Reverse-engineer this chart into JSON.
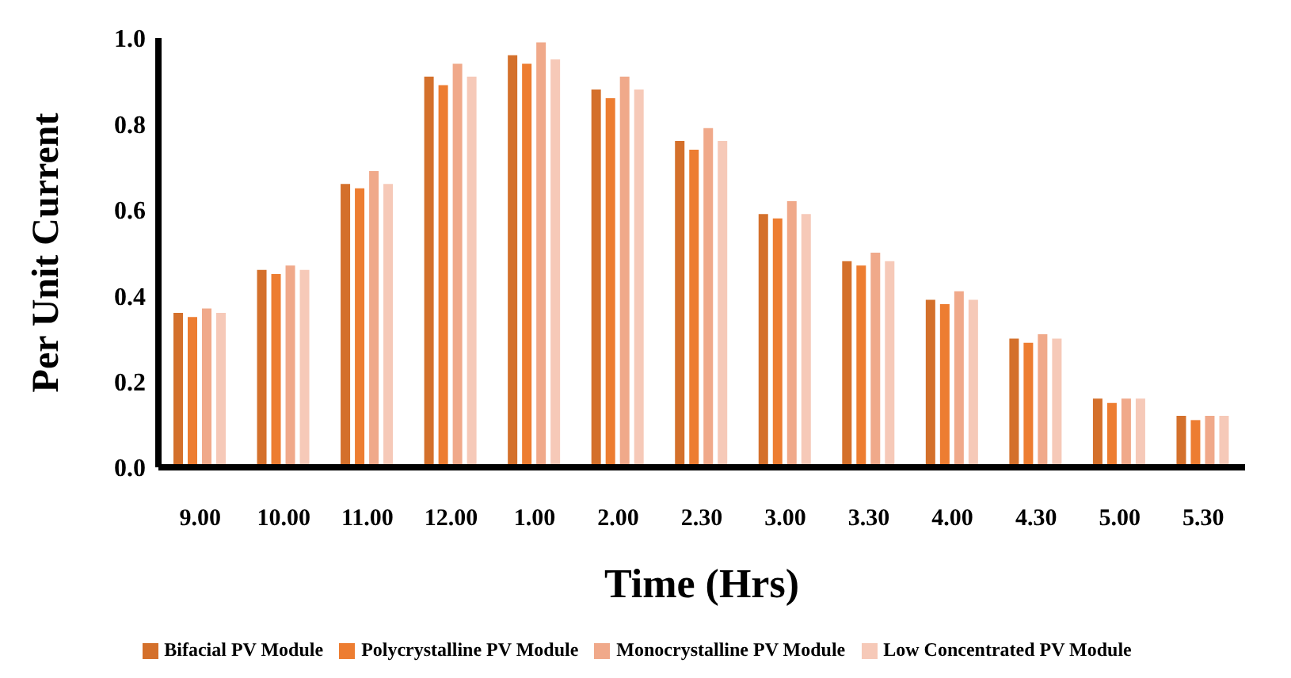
{
  "chart_data": {
    "type": "bar",
    "xlabel": "Time (Hrs)",
    "ylabel": "Per Unit Current",
    "categories": [
      "9.00",
      "10.00",
      "11.00",
      "12.00",
      "1.00",
      "2.00",
      "2.30",
      "3.00",
      "3.30",
      "4.00",
      "4.30",
      "5.00",
      "5.30"
    ],
    "series": [
      {
        "name": "Bifacial PV Module",
        "color": "#d4702b",
        "values": [
          0.36,
          0.46,
          0.66,
          0.91,
          0.96,
          0.88,
          0.76,
          0.59,
          0.48,
          0.39,
          0.3,
          0.16,
          0.12
        ]
      },
      {
        "name": "Polycrystalline PV Module",
        "color": "#ed7d31",
        "values": [
          0.35,
          0.45,
          0.65,
          0.89,
          0.94,
          0.86,
          0.74,
          0.58,
          0.47,
          0.38,
          0.29,
          0.15,
          0.11
        ]
      },
      {
        "name": "Monocrystalline PV Module",
        "color": "#f0a98a",
        "values": [
          0.37,
          0.47,
          0.69,
          0.94,
          0.99,
          0.91,
          0.79,
          0.62,
          0.5,
          0.41,
          0.31,
          0.16,
          0.12
        ]
      },
      {
        "name": "Low Concentrated PV Module",
        "color": "#f6c9b8",
        "values": [
          0.36,
          0.46,
          0.66,
          0.91,
          0.95,
          0.88,
          0.76,
          0.59,
          0.48,
          0.39,
          0.3,
          0.16,
          0.12
        ]
      }
    ],
    "ylim": [
      0,
      1.0
    ],
    "yticks": [
      {
        "value": 0,
        "label": "0.0"
      },
      {
        "value": 0.2,
        "label": "0.2"
      },
      {
        "value": 0.4,
        "label": "0.4"
      },
      {
        "value": 0.6,
        "label": "0.6"
      },
      {
        "value": 0.8,
        "label": "0.8"
      },
      {
        "value": 1.0,
        "label": "1.0"
      }
    ],
    "grid": false,
    "legend": "bottom"
  }
}
